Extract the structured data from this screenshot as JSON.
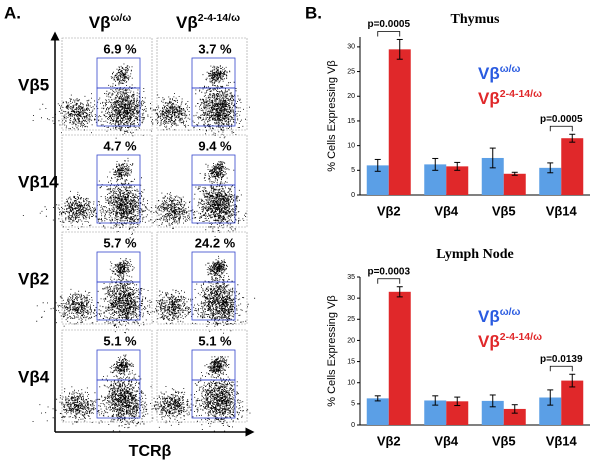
{
  "panel_a": {
    "label": "A.",
    "columns": [
      {
        "name": "Vβ",
        "sup": "ω/ω"
      },
      {
        "name": "Vβ",
        "sup": "2-4-14/ω"
      }
    ],
    "rows": [
      {
        "label": "Vβ5",
        "values": [
          "6.9 %",
          "3.7 %"
        ]
      },
      {
        "label": "Vβ14",
        "values": [
          "4.7 %",
          "9.4 %"
        ]
      },
      {
        "label": "Vβ2",
        "values": [
          "5.7 %",
          "24.2 %"
        ]
      },
      {
        "label": "Vβ4",
        "values": [
          "5.1 %",
          "5.1 %"
        ]
      }
    ],
    "x_label": "TCRβ"
  },
  "panel_b_label": "B.",
  "chart_data": [
    {
      "type": "bar",
      "title": "Thymus",
      "y_label": "% Cells Expressing Vβ",
      "categories": [
        "Vβ2",
        "Vβ4",
        "Vβ5",
        "Vβ14"
      ],
      "series": [
        {
          "name": "Vβ",
          "sup": "ω/ω",
          "color": "#5b9fe6",
          "legend_color": "#2a5be0",
          "values": [
            6,
            6.2,
            7.5,
            5.5
          ],
          "errors": [
            1.2,
            1.2,
            2,
            1
          ]
        },
        {
          "name": "Vβ",
          "sup": "2-4-14/ω",
          "color": "#e0282a",
          "legend_color": "#e0282a",
          "values": [
            29.5,
            5.8,
            4.3,
            11.5
          ],
          "errors": [
            2,
            0.8,
            0.3,
            0.8
          ]
        }
      ],
      "ylim": [
        0,
        32
      ],
      "yticks": [
        0,
        5,
        10,
        15,
        20,
        25,
        30
      ],
      "legend": "right",
      "annotations": [
        {
          "text": "p=0.0005",
          "category": "Vβ2"
        },
        {
          "text": "p=0.0005",
          "category": "Vβ14"
        }
      ]
    },
    {
      "type": "bar",
      "title": "Lymph Node",
      "y_label": "% Cells Expressing Vβ",
      "categories": [
        "Vβ2",
        "Vβ4",
        "Vβ5",
        "Vβ14"
      ],
      "series": [
        {
          "name": "Vβ",
          "sup": "ω/ω",
          "color": "#5b9fe6",
          "legend_color": "#2a5be0",
          "values": [
            6.3,
            5.8,
            5.7,
            6.5
          ],
          "errors": [
            0.6,
            1.1,
            1.4,
            1.8
          ]
        },
        {
          "name": "Vβ",
          "sup": "2-4-14/ω",
          "color": "#e0282a",
          "legend_color": "#e0282a",
          "values": [
            31.5,
            5.6,
            3.8,
            10.5
          ],
          "errors": [
            1.2,
            1,
            1,
            1.5
          ]
        }
      ],
      "ylim": [
        0,
        35
      ],
      "yticks": [
        0,
        5,
        10,
        15,
        20,
        25,
        30,
        35
      ],
      "legend": "right",
      "annotations": [
        {
          "text": "p=0.0003",
          "category": "Vβ2"
        },
        {
          "text": "p=0.0139",
          "category": "Vβ14"
        }
      ]
    }
  ]
}
